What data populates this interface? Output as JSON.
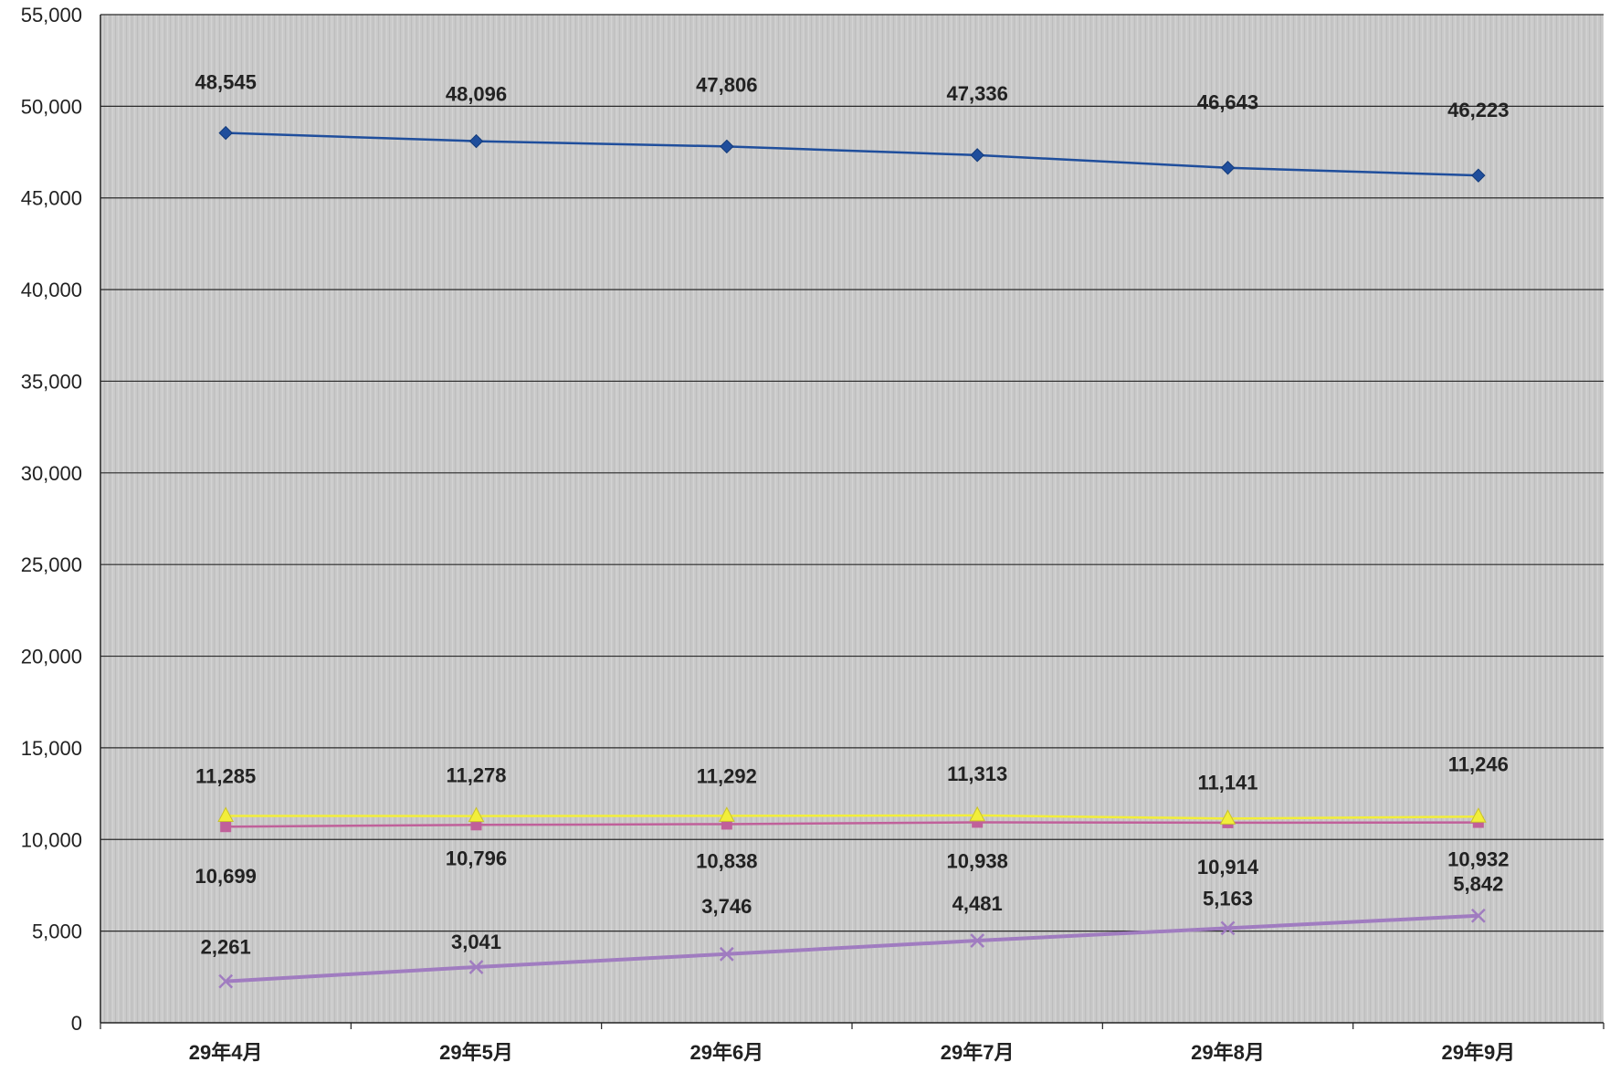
{
  "chart_data": {
    "type": "line",
    "title": "",
    "xlabel": "",
    "ylabel": "",
    "categories": [
      "29年4月",
      "29年5月",
      "29年6月",
      "29年7月",
      "29年8月",
      "29年9月"
    ],
    "ylim": [
      0,
      55000
    ],
    "yticks": [
      "0",
      "5,000",
      "10,000",
      "15,000",
      "20,000",
      "25,000",
      "30,000",
      "35,000",
      "40,000",
      "45,000",
      "50,000",
      "55,000"
    ],
    "grid": true,
    "legend": "none",
    "series": [
      {
        "values": [
          48545,
          48096,
          47806,
          47336,
          46643,
          46223
        ],
        "labels": [
          "48,545",
          "48,096",
          "47,806",
          "47,336",
          "46,643",
          "46,223"
        ],
        "color": "#1f4e9c",
        "marker": "diamond"
      },
      {
        "values": [
          10699,
          10796,
          10838,
          10938,
          10914,
          10932
        ],
        "labels": [
          "10,699",
          "10,796",
          "10,838",
          "10,938",
          "10,914",
          "10,932"
        ],
        "color": "#c0609a",
        "marker": "square"
      },
      {
        "values": [
          11285,
          11278,
          11292,
          11313,
          11141,
          11246
        ],
        "labels": [
          "11,285",
          "11,278",
          "11,292",
          "11,313",
          "11,141",
          "11,246"
        ],
        "color": "#f2ee3a",
        "marker": "triangle"
      },
      {
        "values": [
          2261,
          3041,
          3746,
          4481,
          5163,
          5842
        ],
        "labels": [
          "2,261",
          "3,041",
          "3,746",
          "4,481",
          "5,163",
          "5,842"
        ],
        "color": "#a07cc0",
        "marker": "x"
      }
    ]
  }
}
